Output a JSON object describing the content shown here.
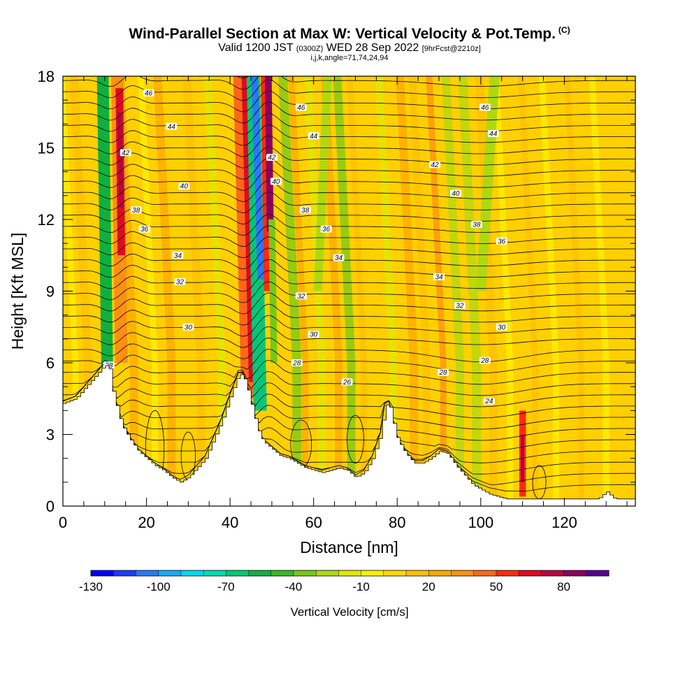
{
  "header": {
    "title": "Wind-Parallel Section at Max W: Vertical Velocity & Pot.Temp.",
    "title_suffix": "(C)",
    "subtitle_a": "Valid 1200 JST",
    "subtitle_b": "(0300Z)",
    "subtitle_c": "WED 28 Sep 2022",
    "subtitle_d": "[9hrFcst@2210z]",
    "subtitle2": "i,j,k,angle=71,74,24,94"
  },
  "chart_data": {
    "type": "heatmap",
    "xlabel": "Distance [nm]",
    "ylabel": "Height [Kft MSL]",
    "xlim": [
      0,
      137
    ],
    "ylim": [
      0,
      18
    ],
    "x_ticks": [
      "0",
      "20",
      "40",
      "60",
      "80",
      "100",
      "120"
    ],
    "y_ticks": [
      "0",
      "3",
      "6",
      "9",
      "12",
      "15",
      "18"
    ],
    "colorbar": {
      "label": "Vertical Velocity [cm/s]",
      "tick_labels": [
        "-130",
        "-100",
        "-70",
        "-40",
        "-10",
        "20",
        "50",
        "80"
      ],
      "levels": [
        -130,
        -120,
        -110,
        -100,
        -90,
        -80,
        -70,
        -60,
        -50,
        -40,
        -30,
        -20,
        -10,
        0,
        10,
        20,
        30,
        40,
        50,
        60,
        70,
        80,
        90
      ],
      "colors": [
        "#0000ff",
        "#1a3cff",
        "#2a78ff",
        "#1aaaff",
        "#00d8f0",
        "#00dcb0",
        "#00c878",
        "#10b040",
        "#38b820",
        "#78c818",
        "#b0d810",
        "#e0e800",
        "#fff000",
        "#ffd800",
        "#ffc000",
        "#ffa800",
        "#ff9010",
        "#ff6818",
        "#ff2a10",
        "#e00a20",
        "#b80040",
        "#8a0060",
        "#580090"
      ]
    },
    "updraft_cores": [
      {
        "x": 13.5,
        "peak_cm_s": 70
      },
      {
        "x": 45,
        "peak_cm_s": 70
      },
      {
        "x": 49,
        "peak_cm_s": 90
      },
      {
        "x": 110,
        "peak_cm_s": 60
      }
    ],
    "downdraft_cores": [
      {
        "x": 10.5,
        "peak_cm_s": -50
      },
      {
        "x": 47,
        "peak_cm_s": -110
      }
    ],
    "contour_labels": [
      {
        "value": "46",
        "x": 20.5,
        "y": 17.3
      },
      {
        "value": "46",
        "x": 57,
        "y": 16.7
      },
      {
        "value": "46",
        "x": 101,
        "y": 16.7
      },
      {
        "value": "44",
        "x": 26,
        "y": 15.9
      },
      {
        "value": "44",
        "x": 60,
        "y": 15.5
      },
      {
        "value": "44",
        "x": 103,
        "y": 15.6
      },
      {
        "value": "42",
        "x": 15,
        "y": 14.8
      },
      {
        "value": "42",
        "x": 50,
        "y": 14.6
      },
      {
        "value": "42",
        "x": 89,
        "y": 14.3
      },
      {
        "value": "40",
        "x": 29,
        "y": 13.4
      },
      {
        "value": "40",
        "x": 51,
        "y": 13.6
      },
      {
        "value": "40",
        "x": 94,
        "y": 13.1
      },
      {
        "value": "38",
        "x": 17.5,
        "y": 12.4
      },
      {
        "value": "38",
        "x": 58,
        "y": 12.4
      },
      {
        "value": "38",
        "x": 99,
        "y": 11.8
      },
      {
        "value": "36",
        "x": 19.5,
        "y": 11.6
      },
      {
        "value": "36",
        "x": 63,
        "y": 11.6
      },
      {
        "value": "36",
        "x": 105,
        "y": 11.1
      },
      {
        "value": "34",
        "x": 27.5,
        "y": 10.5
      },
      {
        "value": "34",
        "x": 66,
        "y": 10.4
      },
      {
        "value": "34",
        "x": 90,
        "y": 9.6
      },
      {
        "value": "32",
        "x": 28,
        "y": 9.4
      },
      {
        "value": "32",
        "x": 57,
        "y": 8.8
      },
      {
        "value": "32",
        "x": 95,
        "y": 8.4
      },
      {
        "value": "30",
        "x": 30,
        "y": 7.5
      },
      {
        "value": "30",
        "x": 60,
        "y": 7.2
      },
      {
        "value": "30",
        "x": 105,
        "y": 7.5
      },
      {
        "value": "28",
        "x": 11,
        "y": 5.9
      },
      {
        "value": "28",
        "x": 56,
        "y": 6.0
      },
      {
        "value": "28",
        "x": 101,
        "y": 6.1
      },
      {
        "value": "26",
        "x": 68,
        "y": 5.2
      },
      {
        "value": "28",
        "x": 91,
        "y": 5.6
      },
      {
        "value": "24",
        "x": 102,
        "y": 4.4
      }
    ],
    "terrain_profile": {
      "x": [
        0,
        3,
        5,
        7,
        9,
        10,
        11,
        12,
        14,
        16,
        18,
        20,
        22,
        24,
        26,
        28,
        30,
        32,
        34,
        36,
        38,
        40,
        42,
        43,
        44,
        45,
        46,
        47,
        48,
        50,
        52,
        54,
        56,
        58,
        60,
        62,
        64,
        66,
        68,
        70,
        72,
        74,
        76,
        77,
        78,
        79,
        80,
        82,
        84,
        86,
        88,
        90,
        92,
        94,
        96,
        98,
        100,
        102,
        104,
        106,
        108,
        110,
        112,
        114,
        116,
        118,
        120,
        122,
        124,
        126,
        128,
        130,
        132,
        134,
        137
      ],
      "y": [
        4.3,
        4.5,
        4.9,
        5.3,
        5.7,
        5.9,
        5.8,
        4.7,
        3.4,
        2.8,
        2.3,
        2.0,
        1.7,
        1.5,
        1.2,
        1.0,
        1.2,
        1.6,
        2.0,
        2.8,
        3.6,
        4.6,
        5.5,
        5.5,
        5.0,
        4.3,
        3.6,
        3.0,
        2.7,
        2.4,
        2.1,
        2.0,
        1.8,
        1.6,
        1.5,
        1.4,
        1.5,
        1.6,
        1.5,
        1.2,
        1.4,
        2.0,
        3.0,
        4.2,
        4.3,
        3.5,
        2.8,
        2.2,
        1.8,
        1.8,
        2.0,
        2.3,
        2.2,
        1.7,
        1.3,
        0.9,
        0.7,
        0.5,
        0.4,
        0.3,
        0.3,
        0.3,
        0.3,
        0.3,
        0.3,
        0.3,
        0.3,
        0.3,
        0.3,
        0.3,
        0.3,
        0.6,
        0.3,
        0.3,
        0.3
      ]
    }
  }
}
